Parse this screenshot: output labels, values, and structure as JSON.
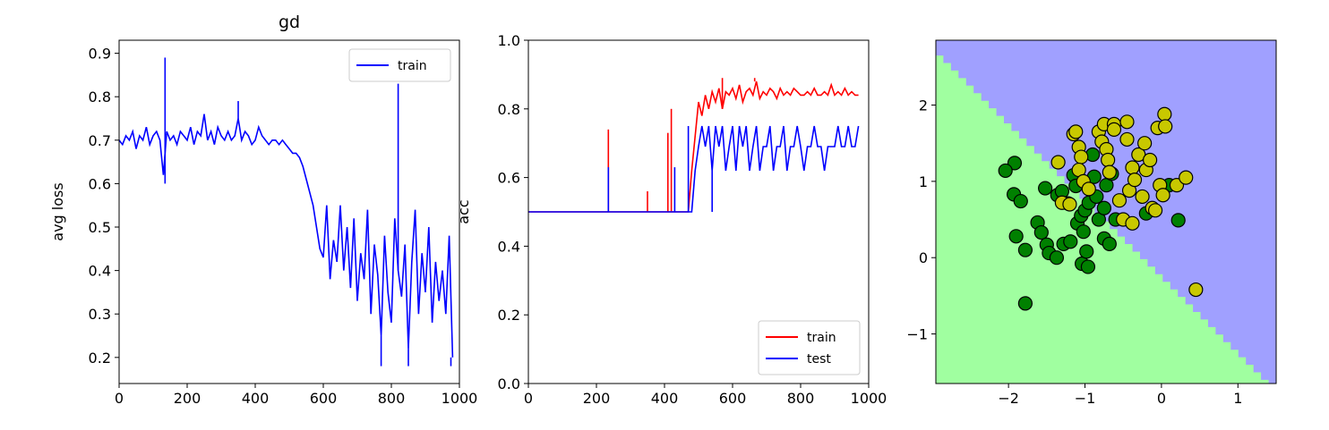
{
  "chart_data": [
    {
      "type": "line",
      "title": "gd",
      "xlabel": "",
      "ylabel": "avg loss",
      "xlim": [
        0,
        1000
      ],
      "ylim": [
        0.14,
        0.93
      ],
      "x_ticks": [
        0,
        200,
        400,
        600,
        800,
        1000
      ],
      "y_ticks": [
        0.2,
        0.3,
        0.4,
        0.5,
        0.6,
        0.7,
        0.8,
        0.9
      ],
      "x_tick_labels": [
        "0",
        "200",
        "400",
        "600",
        "800",
        "1000"
      ],
      "y_tick_labels": [
        "0.2",
        "0.3",
        "0.4",
        "0.5",
        "0.6",
        "0.7",
        "0.8",
        "0.9"
      ],
      "legend": {
        "placement": "upper-right",
        "entries": [
          "train"
        ]
      },
      "series": [
        {
          "name": "train",
          "color": "#0000ff",
          "x_step": 10,
          "values": [
            0.7,
            0.69,
            0.71,
            0.7,
            0.72,
            0.68,
            0.71,
            0.7,
            0.73,
            0.69,
            0.71,
            0.72,
            0.7,
            0.62,
            0.72,
            0.7,
            0.71,
            0.69,
            0.72,
            0.71,
            0.7,
            0.73,
            0.69,
            0.72,
            0.71,
            0.76,
            0.7,
            0.72,
            0.69,
            0.73,
            0.71,
            0.7,
            0.72,
            0.7,
            0.71,
            0.75,
            0.7,
            0.72,
            0.71,
            0.69,
            0.7,
            0.73,
            0.71,
            0.7,
            0.69,
            0.7,
            0.7,
            0.69,
            0.7,
            0.69,
            0.68,
            0.67,
            0.67,
            0.66,
            0.64,
            0.61,
            0.58,
            0.55,
            0.5,
            0.45,
            0.43,
            0.55,
            0.38,
            0.47,
            0.42,
            0.55,
            0.4,
            0.5,
            0.36,
            0.52,
            0.33,
            0.44,
            0.38,
            0.54,
            0.3,
            0.46,
            0.39,
            0.25,
            0.48,
            0.35,
            0.28,
            0.52,
            0.4,
            0.34,
            0.46,
            0.22,
            0.42,
            0.54,
            0.3,
            0.44,
            0.35,
            0.5,
            0.28,
            0.42,
            0.33,
            0.4,
            0.3,
            0.48,
            0.2
          ],
          "spikes": [
            {
              "x": 135,
              "y": 0.89
            },
            {
              "x": 135,
              "y": 0.6
            },
            {
              "x": 350,
              "y": 0.79
            },
            {
              "x": 820,
              "y": 0.83
            },
            {
              "x": 770,
              "y": 0.18
            },
            {
              "x": 850,
              "y": 0.18
            },
            {
              "x": 975,
              "y": 0.18
            }
          ]
        }
      ]
    },
    {
      "type": "line",
      "title": "",
      "xlabel": "",
      "ylabel": "acc",
      "xlim": [
        0,
        1000
      ],
      "ylim": [
        0.0,
        1.0
      ],
      "x_ticks": [
        0,
        200,
        400,
        600,
        800,
        1000
      ],
      "y_ticks": [
        0.0,
        0.2,
        0.4,
        0.6,
        0.8,
        1.0
      ],
      "x_tick_labels": [
        "0",
        "200",
        "400",
        "600",
        "800",
        "1000"
      ],
      "y_tick_labels": [
        "0.0",
        "0.2",
        "0.4",
        "0.6",
        "0.8",
        "1.0"
      ],
      "legend": {
        "placement": "lower-right",
        "entries": [
          "train",
          "test"
        ]
      },
      "series": [
        {
          "name": "train",
          "color": "#ff0000",
          "x_step": 10,
          "values": [
            0.5,
            0.5,
            0.5,
            0.5,
            0.5,
            0.5,
            0.5,
            0.5,
            0.5,
            0.5,
            0.5,
            0.5,
            0.5,
            0.5,
            0.5,
            0.5,
            0.5,
            0.5,
            0.5,
            0.5,
            0.5,
            0.5,
            0.5,
            0.5,
            0.5,
            0.5,
            0.5,
            0.5,
            0.5,
            0.5,
            0.5,
            0.5,
            0.5,
            0.5,
            0.5,
            0.5,
            0.5,
            0.5,
            0.5,
            0.5,
            0.5,
            0.5,
            0.5,
            0.5,
            0.5,
            0.5,
            0.5,
            0.5,
            0.62,
            0.72,
            0.82,
            0.78,
            0.84,
            0.8,
            0.85,
            0.82,
            0.86,
            0.8,
            0.85,
            0.84,
            0.86,
            0.83,
            0.87,
            0.82,
            0.85,
            0.86,
            0.84,
            0.88,
            0.83,
            0.85,
            0.84,
            0.86,
            0.85,
            0.83,
            0.86,
            0.84,
            0.85,
            0.84,
            0.86,
            0.85,
            0.84,
            0.84,
            0.85,
            0.84,
            0.86,
            0.84,
            0.84,
            0.85,
            0.84,
            0.87,
            0.84,
            0.85,
            0.84,
            0.86,
            0.84,
            0.85,
            0.84,
            0.84
          ],
          "spikes": [
            {
              "x": 235,
              "y": 0.74
            },
            {
              "x": 350,
              "y": 0.56
            },
            {
              "x": 410,
              "y": 0.73
            },
            {
              "x": 420,
              "y": 0.8
            },
            {
              "x": 570,
              "y": 0.89
            },
            {
              "x": 665,
              "y": 0.89
            }
          ]
        },
        {
          "name": "test",
          "color": "#0000ff",
          "x_step": 10,
          "values": [
            0.5,
            0.5,
            0.5,
            0.5,
            0.5,
            0.5,
            0.5,
            0.5,
            0.5,
            0.5,
            0.5,
            0.5,
            0.5,
            0.5,
            0.5,
            0.5,
            0.5,
            0.5,
            0.5,
            0.5,
            0.5,
            0.5,
            0.5,
            0.5,
            0.5,
            0.5,
            0.5,
            0.5,
            0.5,
            0.5,
            0.5,
            0.5,
            0.5,
            0.5,
            0.5,
            0.5,
            0.5,
            0.5,
            0.5,
            0.5,
            0.5,
            0.5,
            0.5,
            0.5,
            0.5,
            0.5,
            0.5,
            0.5,
            0.5,
            0.62,
            0.69,
            0.75,
            0.69,
            0.75,
            0.62,
            0.75,
            0.69,
            0.75,
            0.62,
            0.69,
            0.75,
            0.62,
            0.75,
            0.69,
            0.75,
            0.62,
            0.69,
            0.75,
            0.62,
            0.69,
            0.69,
            0.75,
            0.62,
            0.69,
            0.69,
            0.75,
            0.62,
            0.69,
            0.69,
            0.75,
            0.69,
            0.62,
            0.69,
            0.69,
            0.75,
            0.69,
            0.69,
            0.62,
            0.69,
            0.69,
            0.69,
            0.75,
            0.69,
            0.69,
            0.75,
            0.69,
            0.69,
            0.75
          ],
          "spikes": [
            {
              "x": 235,
              "y": 0.63
            },
            {
              "x": 430,
              "y": 0.63
            },
            {
              "x": 470,
              "y": 0.75
            },
            {
              "x": 540,
              "y": 0.5
            }
          ]
        }
      ]
    },
    {
      "type": "scatter",
      "title": "",
      "xlabel": "",
      "ylabel": "",
      "xlim": [
        -2.95,
        1.5
      ],
      "ylim": [
        -1.65,
        2.85
      ],
      "x_ticks": [
        -2,
        -1,
        0,
        1
      ],
      "y_ticks": [
        -1,
        0,
        1,
        2
      ],
      "x_tick_labels": [
        "−2",
        "−1",
        "0",
        "1"
      ],
      "y_tick_labels": [
        "−1",
        "0",
        "1",
        "2"
      ],
      "decision_boundary": {
        "line": "y = -x - 0.3",
        "above_color": "#a0a0ff",
        "below_color": "#a0ffa0"
      },
      "series": [
        {
          "color": "#008000",
          "points": [
            [
              -1.92,
              1.24
            ],
            [
              -2.04,
              1.14
            ],
            [
              -1.93,
              0.83
            ],
            [
              -1.84,
              0.74
            ],
            [
              -1.9,
              0.28
            ],
            [
              -1.78,
              0.1
            ],
            [
              -1.78,
              -0.6
            ],
            [
              -1.62,
              0.46
            ],
            [
              -1.57,
              0.33
            ],
            [
              -1.52,
              0.91
            ],
            [
              -1.5,
              0.17
            ],
            [
              -1.47,
              0.06
            ],
            [
              -1.37,
              0.0
            ],
            [
              -1.36,
              0.82
            ],
            [
              -1.3,
              0.87
            ],
            [
              -1.28,
              0.18
            ],
            [
              -1.22,
              0.71
            ],
            [
              -1.19,
              0.21
            ],
            [
              -1.15,
              1.08
            ],
            [
              -1.12,
              0.94
            ],
            [
              -1.1,
              0.45
            ],
            [
              -1.05,
              0.55
            ],
            [
              -1.02,
              0.34
            ],
            [
              -1.0,
              0.62
            ],
            [
              -1.04,
              -0.08
            ],
            [
              -0.96,
              -0.12
            ],
            [
              -0.98,
              0.08
            ],
            [
              -0.95,
              0.72
            ],
            [
              -0.9,
              1.35
            ],
            [
              -0.88,
              1.06
            ],
            [
              -0.85,
              0.8
            ],
            [
              -0.82,
              0.5
            ],
            [
              -0.75,
              0.65
            ],
            [
              -0.75,
              0.25
            ],
            [
              -0.72,
              0.95
            ],
            [
              -0.68,
              0.18
            ],
            [
              -0.65,
              1.1
            ],
            [
              -0.6,
              0.5
            ],
            [
              -0.2,
              0.58
            ],
            [
              0.1,
              0.95
            ],
            [
              0.22,
              0.49
            ]
          ]
        },
        {
          "color": "#c8c800",
          "points": [
            [
              -1.35,
              1.25
            ],
            [
              -1.3,
              0.72
            ],
            [
              -1.2,
              0.7
            ],
            [
              -1.15,
              1.62
            ],
            [
              -1.12,
              1.65
            ],
            [
              -1.08,
              1.45
            ],
            [
              -1.05,
              1.32
            ],
            [
              -1.08,
              1.15
            ],
            [
              -1.02,
              1.0
            ],
            [
              -0.95,
              0.9
            ],
            [
              -0.82,
              1.65
            ],
            [
              -0.78,
              1.52
            ],
            [
              -0.75,
              1.75
            ],
            [
              -0.72,
              1.42
            ],
            [
              -0.7,
              1.28
            ],
            [
              -0.68,
              1.12
            ],
            [
              -0.62,
              1.75
            ],
            [
              -0.55,
              0.75
            ],
            [
              -0.5,
              0.5
            ],
            [
              -0.45,
              1.55
            ],
            [
              -0.42,
              0.88
            ],
            [
              -0.38,
              1.18
            ],
            [
              -0.38,
              0.45
            ],
            [
              -0.35,
              1.02
            ],
            [
              -0.3,
              1.35
            ],
            [
              -0.25,
              0.8
            ],
            [
              -0.22,
              1.5
            ],
            [
              -0.2,
              1.15
            ],
            [
              -0.15,
              1.28
            ],
            [
              -0.12,
              0.65
            ],
            [
              -0.08,
              0.62
            ],
            [
              -0.05,
              1.7
            ],
            [
              -0.02,
              0.95
            ],
            [
              0.02,
              0.82
            ],
            [
              0.04,
              1.88
            ],
            [
              0.05,
              1.72
            ],
            [
              0.2,
              0.95
            ],
            [
              0.32,
              1.05
            ],
            [
              0.45,
              -0.42
            ],
            [
              -0.45,
              1.78
            ],
            [
              -0.62,
              1.68
            ]
          ]
        }
      ]
    }
  ]
}
